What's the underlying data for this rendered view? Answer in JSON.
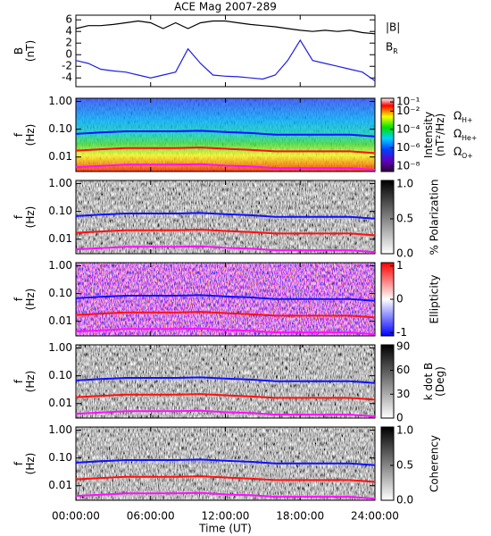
{
  "chart_data": [
    {
      "type": "line",
      "title": "ACE Mag 2007-289",
      "ylabel": [
        "B",
        "(nT)"
      ],
      "x": [
        0,
        1,
        2,
        3,
        4,
        5,
        6,
        7,
        8,
        9,
        10,
        11,
        12,
        13,
        14,
        15,
        16,
        17,
        18,
        19,
        20,
        21,
        22,
        23,
        24
      ],
      "ylim": [
        -5.5,
        6.8
      ],
      "yticks": [
        -4,
        -2,
        0,
        2,
        4,
        6
      ],
      "series": [
        {
          "name": "|B|",
          "color": "#000000",
          "values": [
            4.5,
            5,
            5,
            5.2,
            5.5,
            5.8,
            5.5,
            4.5,
            5.5,
            4.5,
            5.5,
            5.8,
            5.8,
            5.5,
            5.2,
            5,
            4.8,
            4.5,
            4.2,
            4,
            4.2,
            4,
            4.2,
            3.8,
            3.6
          ]
        },
        {
          "name": "B_R",
          "color": "#2020e0",
          "values": [
            -1,
            -1.5,
            -2.5,
            -2.8,
            -3,
            -3.5,
            -4,
            -3.5,
            -3,
            1,
            -1.5,
            -3.5,
            -3.7,
            -3.8,
            -4,
            -4.2,
            -3.5,
            -1,
            2.5,
            -1,
            -1.5,
            -2,
            -2.5,
            -3,
            -4.5
          ]
        }
      ]
    },
    {
      "type": "spectrogram",
      "colormap": "rainbow",
      "ylabel": [
        "f",
        "(Hz)"
      ],
      "log_y": true,
      "x": [
        0,
        2,
        4,
        6,
        8,
        10,
        12,
        14,
        16,
        18,
        20,
        22,
        24
      ],
      "ylim": [
        0.003,
        1.3
      ],
      "yticks": [
        {
          "value": 1,
          "label": "1.00"
        },
        {
          "value": 0.1,
          "label": "0.10"
        },
        {
          "value": 0.01,
          "label": "0.01"
        }
      ],
      "colorbar_label": [
        "Intensity",
        "(nT²/Hz)"
      ],
      "zlim": [
        -8.6,
        -0.6
      ],
      "zticks": [
        {
          "value": -1,
          "label": "10⁻¹"
        },
        {
          "value": -2,
          "label": "10⁻²"
        },
        {
          "value": -4,
          "label": "10⁻⁴"
        },
        {
          "value": -6,
          "label": "10⁻⁶"
        },
        {
          "value": -8,
          "label": "10⁻⁸"
        }
      ],
      "series": [
        {
          "name": "Ω_H+",
          "color": "#1010ff",
          "values": [
            0.068,
            0.076,
            0.084,
            0.084,
            0.084,
            0.088,
            0.079,
            0.073,
            0.064,
            0.064,
            0.064,
            0.064,
            0.055
          ]
        },
        {
          "name": "Ω_He+",
          "color": "#ff1010",
          "values": [
            0.017,
            0.019,
            0.021,
            0.021,
            0.021,
            0.022,
            0.0198,
            0.018,
            0.016,
            0.016,
            0.016,
            0.016,
            0.0138
          ]
        },
        {
          "name": "Ω_O+",
          "color": "#ff10ff",
          "values": [
            0.0043,
            0.0048,
            0.0053,
            0.0053,
            0.0053,
            0.0055,
            0.0049,
            0.0046,
            0.004,
            0.004,
            0.004,
            0.004,
            0.0034
          ]
        }
      ]
    },
    {
      "type": "spectrogram",
      "colormap": "gray",
      "ylabel": [
        "f",
        "(Hz)"
      ],
      "log_y": true,
      "x": [
        0,
        2,
        4,
        6,
        8,
        10,
        12,
        14,
        16,
        18,
        20,
        22,
        24
      ],
      "ylim": [
        0.003,
        1.3
      ],
      "yticks": [
        {
          "value": 1,
          "label": "1.00"
        },
        {
          "value": 0.1,
          "label": "0.10"
        },
        {
          "value": 0.01,
          "label": "0.01"
        }
      ],
      "colorbar_label": [
        "% Polarization"
      ],
      "zlim": [
        0,
        1.05
      ],
      "zticks": [
        {
          "value": 0,
          "label": "0.0"
        },
        {
          "value": 0.5,
          "label": "0.5"
        },
        {
          "value": 1,
          "label": "1.0"
        }
      ],
      "series": [
        {
          "color": "#1010ff",
          "values": [
            0.068,
            0.076,
            0.084,
            0.084,
            0.084,
            0.088,
            0.079,
            0.073,
            0.064,
            0.064,
            0.064,
            0.064,
            0.055
          ]
        },
        {
          "color": "#ff1010",
          "values": [
            0.017,
            0.019,
            0.021,
            0.021,
            0.021,
            0.022,
            0.0198,
            0.018,
            0.016,
            0.016,
            0.016,
            0.016,
            0.0138
          ]
        },
        {
          "color": "#ff10ff",
          "values": [
            0.0043,
            0.0048,
            0.0053,
            0.0053,
            0.0053,
            0.0055,
            0.0049,
            0.0046,
            0.004,
            0.004,
            0.004,
            0.004,
            0.0034
          ]
        }
      ]
    },
    {
      "type": "spectrogram",
      "colormap": "bwr",
      "ylabel": [
        "f",
        "(Hz)"
      ],
      "log_y": true,
      "x": [
        0,
        2,
        4,
        6,
        8,
        10,
        12,
        14,
        16,
        18,
        20,
        22,
        24
      ],
      "ylim": [
        0.003,
        1.3
      ],
      "yticks": [
        {
          "value": 1,
          "label": "1.00"
        },
        {
          "value": 0.1,
          "label": "0.10"
        },
        {
          "value": 0.01,
          "label": "0.01"
        }
      ],
      "colorbar_label": [
        "Ellipticity"
      ],
      "zlim": [
        -1.1,
        1.1
      ],
      "zticks": [
        1,
        0,
        -1
      ],
      "series": [
        {
          "color": "#1010ff",
          "values": [
            0.068,
            0.076,
            0.084,
            0.084,
            0.084,
            0.088,
            0.079,
            0.073,
            0.064,
            0.064,
            0.064,
            0.064,
            0.055
          ]
        },
        {
          "color": "#ff1010",
          "values": [
            0.017,
            0.019,
            0.021,
            0.021,
            0.021,
            0.022,
            0.0198,
            0.018,
            0.016,
            0.016,
            0.016,
            0.016,
            0.0138
          ]
        },
        {
          "color": "#ff10ff",
          "values": [
            0.0043,
            0.0048,
            0.0053,
            0.0053,
            0.0053,
            0.0055,
            0.0049,
            0.0046,
            0.004,
            0.004,
            0.004,
            0.004,
            0.0034
          ]
        }
      ]
    },
    {
      "type": "spectrogram",
      "colormap": "gray",
      "ylabel": [
        "f",
        "(Hz)"
      ],
      "log_y": true,
      "x": [
        0,
        2,
        4,
        6,
        8,
        10,
        12,
        14,
        16,
        18,
        20,
        22,
        24
      ],
      "ylim": [
        0.003,
        1.3
      ],
      "yticks": [
        {
          "value": 1,
          "label": "1.00"
        },
        {
          "value": 0.1,
          "label": "0.10"
        },
        {
          "value": 0.01,
          "label": "0.01"
        }
      ],
      "colorbar_label": [
        "k dot B",
        "(Deg)"
      ],
      "zlim": [
        0,
        92
      ],
      "zticks": [
        90,
        60,
        30,
        0
      ],
      "series": [
        {
          "color": "#1010ff",
          "values": [
            0.068,
            0.076,
            0.084,
            0.084,
            0.084,
            0.088,
            0.079,
            0.073,
            0.064,
            0.064,
            0.064,
            0.064,
            0.055
          ]
        },
        {
          "color": "#ff1010",
          "values": [
            0.017,
            0.019,
            0.021,
            0.021,
            0.021,
            0.022,
            0.0198,
            0.018,
            0.016,
            0.016,
            0.016,
            0.016,
            0.0138
          ]
        },
        {
          "color": "#ff10ff",
          "values": [
            0.0043,
            0.0048,
            0.0053,
            0.0053,
            0.0053,
            0.0055,
            0.0049,
            0.0046,
            0.004,
            0.004,
            0.004,
            0.004,
            0.0034
          ]
        }
      ]
    },
    {
      "type": "spectrogram",
      "colormap": "gray",
      "ylabel": [
        "f",
        "(Hz)"
      ],
      "log_y": true,
      "x": [
        0,
        2,
        4,
        6,
        8,
        10,
        12,
        14,
        16,
        18,
        20,
        22,
        24
      ],
      "ylim": [
        0.003,
        1.3
      ],
      "yticks": [
        {
          "value": 1,
          "label": "1.00"
        },
        {
          "value": 0.1,
          "label": "0.10"
        },
        {
          "value": 0.01,
          "label": "0.01"
        }
      ],
      "colorbar_label": [
        "Coherency"
      ],
      "zlim": [
        0,
        1.05
      ],
      "zticks": [
        {
          "value": 0,
          "label": "0.0"
        },
        {
          "value": 0.5,
          "label": "0.5"
        },
        {
          "value": 1,
          "label": "1.0"
        }
      ],
      "xlim": [
        0,
        24
      ],
      "xticks": [
        {
          "value": 0,
          "label": "00:00:00"
        },
        {
          "value": 6,
          "label": "06:00:00"
        },
        {
          "value": 12,
          "label": "12:00:00"
        },
        {
          "value": 18,
          "label": "18:00:00"
        },
        {
          "value": 24,
          "label": "24:00:00"
        }
      ],
      "xlabel": "Time (UT)",
      "series": [
        {
          "color": "#1010ff",
          "values": [
            0.068,
            0.076,
            0.084,
            0.084,
            0.084,
            0.088,
            0.079,
            0.073,
            0.064,
            0.064,
            0.064,
            0.064,
            0.055
          ]
        },
        {
          "color": "#ff1010",
          "values": [
            0.017,
            0.019,
            0.021,
            0.021,
            0.021,
            0.022,
            0.0198,
            0.018,
            0.016,
            0.016,
            0.016,
            0.016,
            0.0138
          ]
        },
        {
          "color": "#ff10ff",
          "values": [
            0.0043,
            0.0048,
            0.0053,
            0.0053,
            0.0053,
            0.0055,
            0.0049,
            0.0046,
            0.004,
            0.004,
            0.004,
            0.004,
            0.0034
          ]
        }
      ]
    }
  ]
}
